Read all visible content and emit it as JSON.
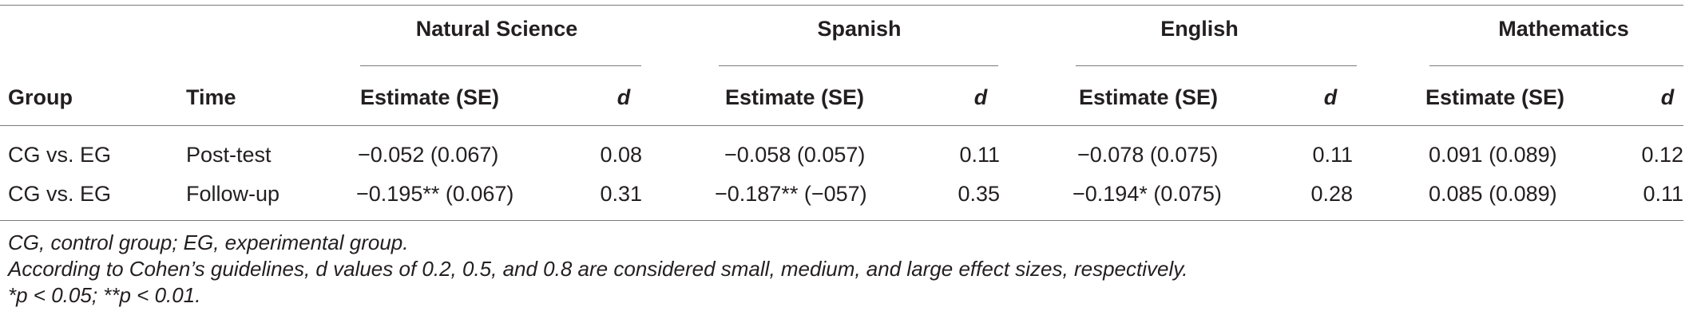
{
  "table": {
    "subjects": [
      "Natural Science",
      "Spanish",
      "English",
      "Mathematics"
    ],
    "columns": {
      "group": "Group",
      "time": "Time",
      "estimate": "Estimate (SE)",
      "d": "d"
    },
    "rows": [
      {
        "group": "CG vs. EG",
        "time": "Post-test",
        "values": [
          {
            "estimate": "−0.052 (0.067)",
            "d": "0.08"
          },
          {
            "estimate": "−0.058 (0.057)",
            "d": "0.11"
          },
          {
            "estimate": "−0.078 (0.075)",
            "d": "0.11"
          },
          {
            "estimate": "0.091 (0.089)",
            "d": "0.12"
          }
        ]
      },
      {
        "group": "CG vs. EG",
        "time": "Follow-up",
        "values": [
          {
            "estimate": "−0.195** (0.067)",
            "d": "0.31"
          },
          {
            "estimate": "−0.187** (−057)",
            "d": "0.35"
          },
          {
            "estimate": "−0.194* (0.075)",
            "d": "0.28"
          },
          {
            "estimate": "0.085 (0.089)",
            "d": "0.11"
          }
        ]
      }
    ]
  },
  "notes": [
    "CG, control group; EG, experimental group.",
    "According to Cohen’s guidelines, d values of 0.2, 0.5, and 0.8 are considered small, medium, and large effect sizes, respectively.",
    "*p < 0.05; **p < 0.01."
  ]
}
